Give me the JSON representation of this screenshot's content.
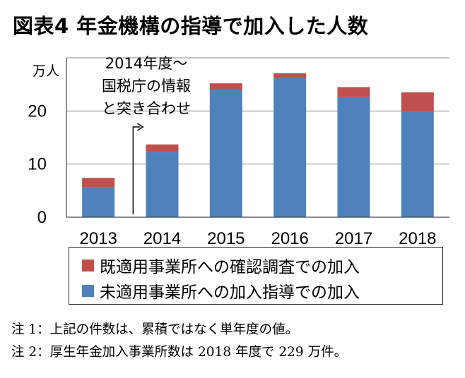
{
  "title": "図表4 年金機構の指導で加入した人数",
  "chart_data": {
    "type": "bar",
    "stacked": true,
    "unit_label": "万人",
    "categories": [
      "2013",
      "2014",
      "2015",
      "2016",
      "2017",
      "2018"
    ],
    "series": [
      {
        "name": "未適用事業所への加入指導での加入",
        "color": "#4f81bd",
        "values": [
          5.6,
          12.3,
          23.9,
          26.2,
          22.6,
          19.8
        ]
      },
      {
        "name": "既適用事業所への確認調査での加入",
        "color": "#c0504d",
        "values": [
          1.8,
          1.4,
          1.3,
          0.9,
          1.9,
          3.7
        ]
      }
    ],
    "yticks": [
      0,
      10,
      20
    ],
    "ylim": [
      0,
      30
    ],
    "grid": true,
    "legend_position": "bottom",
    "annotation": {
      "lines": [
        "2014年度～",
        "国税庁の情報",
        "と突き合わせ"
      ],
      "arrow_at": "2014"
    }
  },
  "notes": [
    "注 1：上記の件数は、累積ではなく単年度の値。",
    "注 2：厚生年金加入事業所数は 2018 年度で 229 万件。"
  ]
}
